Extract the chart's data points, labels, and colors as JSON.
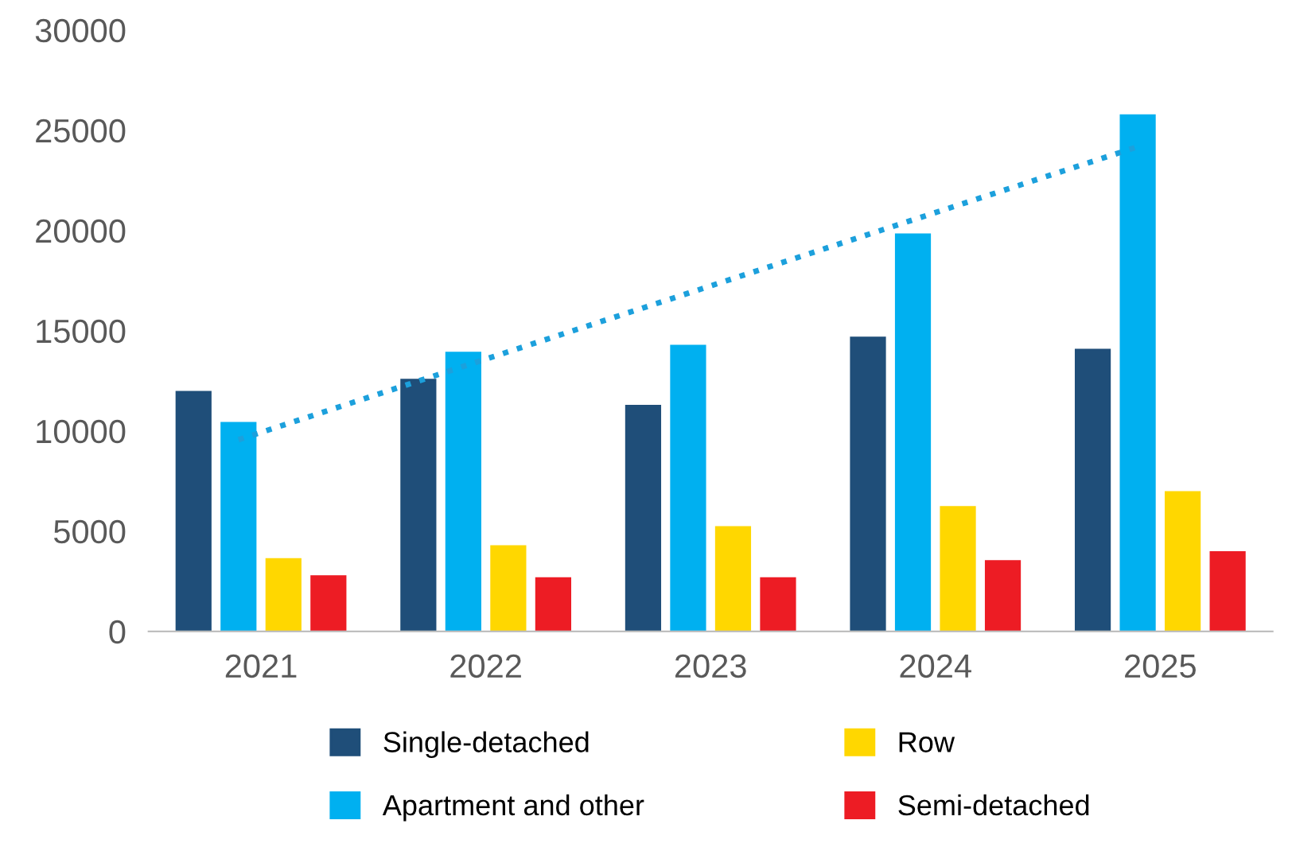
{
  "chart_data": {
    "type": "bar",
    "categories": [
      "2021",
      "2022",
      "2023",
      "2024",
      "2025"
    ],
    "series": [
      {
        "name": "Single-detached",
        "color": "#1f4e79",
        "values": [
          12000,
          12600,
          11300,
          14700,
          14100
        ]
      },
      {
        "name": "Apartment and other",
        "color": "#00b0f0",
        "values": [
          10450,
          13950,
          14300,
          19850,
          25800
        ]
      },
      {
        "name": "Row",
        "color": "#ffd700",
        "values": [
          3650,
          4300,
          5250,
          6250,
          7000
        ]
      },
      {
        "name": "Semi-detached",
        "color": "#ed1c24",
        "values": [
          2800,
          2700,
          2700,
          3550,
          4000
        ]
      },
      {
        "type": "line",
        "color": "#1ca0dc",
        "line_style": "dotted",
        "marker": "none",
        "values": [
          9560,
          13220,
          16870,
          20530,
          24180
        ]
      }
    ],
    "ylim": [
      0,
      30000
    ],
    "yticks": [
      0,
      5000,
      10000,
      15000,
      20000,
      25000,
      30000
    ],
    "grid": false,
    "legend": "bottom"
  }
}
